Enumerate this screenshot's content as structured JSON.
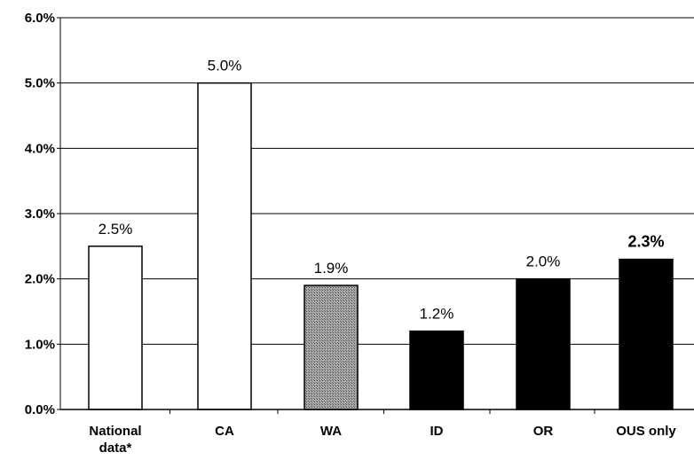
{
  "chart_data": {
    "type": "bar",
    "categories": [
      [
        "National",
        "data*"
      ],
      [
        "CA"
      ],
      [
        "WA"
      ],
      [
        "ID"
      ],
      [
        "OR"
      ],
      [
        "OUS only"
      ]
    ],
    "values": [
      2.5,
      5.0,
      1.9,
      1.2,
      2.0,
      2.3
    ],
    "data_labels": [
      "2.5%",
      "5.0%",
      "1.9%",
      "1.2%",
      "2.0%",
      "2.3%"
    ],
    "bar_fills": [
      "white",
      "white",
      "hatched-gray",
      "black",
      "black",
      "black"
    ],
    "y_ticks": [
      "0.0%",
      "1.0%",
      "2.0%",
      "3.0%",
      "4.0%",
      "5.0%",
      "6.0%"
    ],
    "ylim": [
      0,
      6
    ],
    "grid": true,
    "title": "",
    "xlabel": "",
    "ylabel": ""
  }
}
